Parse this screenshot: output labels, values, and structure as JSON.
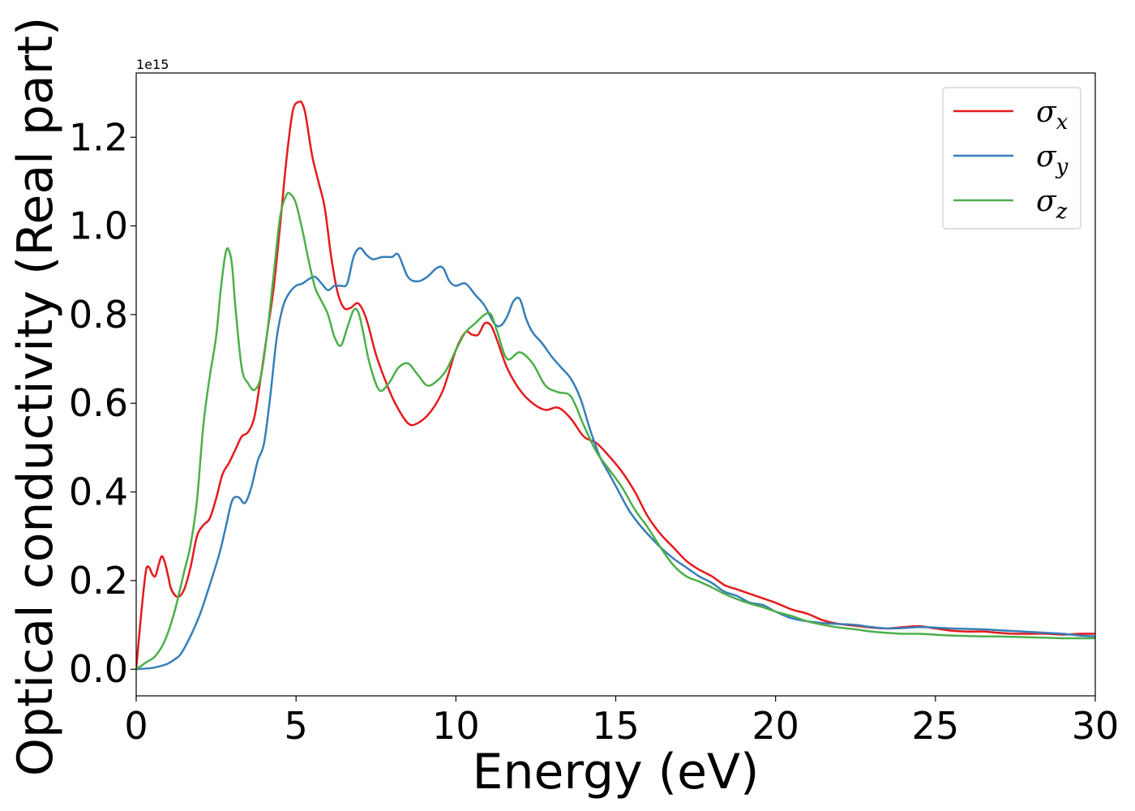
{
  "chart_data": {
    "type": "line",
    "title": "",
    "xlabel": "Energy (eV)",
    "ylabel": "Optical conductivity (Real part)",
    "y_offset_label": "1e15",
    "xlim": [
      0,
      30
    ],
    "ylim": [
      -0.06,
      1.345
    ],
    "x_ticks": [
      0,
      5,
      10,
      15,
      20,
      25,
      30
    ],
    "x_tick_labels": [
      "0",
      "5",
      "10",
      "15",
      "20",
      "25",
      "30"
    ],
    "y_ticks": [
      0.0,
      0.2,
      0.4,
      0.6,
      0.8,
      1.0,
      1.2
    ],
    "y_tick_labels": [
      "0.0",
      "0.2",
      "0.4",
      "0.6",
      "0.8",
      "1.0",
      "1.2"
    ],
    "grid": false,
    "legend_position": "top-right",
    "series": [
      {
        "name": "σx",
        "legend_symbol": "σ",
        "legend_subscript": "x",
        "color": "#e41a1c",
        "x": [
          0,
          0.15,
          0.3,
          0.4,
          0.5,
          0.6,
          0.7,
          0.8,
          0.9,
          1.0,
          1.1,
          1.3,
          1.5,
          1.7,
          1.9,
          2.1,
          2.3,
          2.5,
          2.7,
          2.9,
          3.1,
          3.3,
          3.5,
          3.7,
          3.9,
          4.1,
          4.3,
          4.5,
          4.7,
          4.9,
          5.1,
          5.2,
          5.3,
          5.5,
          5.7,
          5.9,
          6.1,
          6.3,
          6.5,
          6.7,
          6.95,
          7.2,
          7.5,
          7.8,
          8.1,
          8.5,
          8.8,
          9.2,
          9.6,
          10.0,
          10.3,
          10.5,
          10.7,
          10.9,
          11.1,
          11.3,
          11.6,
          12.0,
          12.4,
          12.8,
          13.2,
          13.6,
          14.0,
          14.4,
          14.8,
          15.2,
          15.6,
          16.0,
          16.4,
          16.8,
          17.2,
          17.6,
          18.0,
          18.4,
          18.8,
          19.2,
          19.6,
          20.0,
          20.5,
          21.0,
          21.5,
          22.0,
          22.5,
          23.0,
          23.5,
          24.0,
          24.5,
          25.0,
          25.5,
          26.0,
          26.5,
          27.0,
          27.5,
          28.0,
          28.5,
          29.0,
          29.5,
          30.0
        ],
        "values": [
          0.0,
          0.12,
          0.22,
          0.23,
          0.215,
          0.21,
          0.235,
          0.255,
          0.24,
          0.21,
          0.18,
          0.163,
          0.18,
          0.23,
          0.3,
          0.325,
          0.34,
          0.385,
          0.44,
          0.465,
          0.495,
          0.525,
          0.535,
          0.57,
          0.66,
          0.76,
          0.86,
          1.0,
          1.15,
          1.26,
          1.28,
          1.275,
          1.25,
          1.16,
          1.1,
          1.04,
          0.93,
          0.85,
          0.815,
          0.815,
          0.825,
          0.79,
          0.71,
          0.65,
          0.6,
          0.555,
          0.555,
          0.58,
          0.63,
          0.72,
          0.76,
          0.755,
          0.755,
          0.78,
          0.775,
          0.74,
          0.68,
          0.63,
          0.6,
          0.585,
          0.59,
          0.565,
          0.525,
          0.51,
          0.48,
          0.445,
          0.4,
          0.345,
          0.305,
          0.275,
          0.245,
          0.225,
          0.21,
          0.19,
          0.18,
          0.17,
          0.16,
          0.15,
          0.135,
          0.125,
          0.11,
          0.102,
          0.098,
          0.094,
          0.092,
          0.095,
          0.097,
          0.092,
          0.087,
          0.085,
          0.085,
          0.082,
          0.08,
          0.08,
          0.08,
          0.078,
          0.08,
          0.08
        ]
      },
      {
        "name": "σy",
        "legend_symbol": "σ",
        "legend_subscript": "y",
        "color": "#377eb8",
        "x": [
          0,
          0.5,
          0.8,
          1.0,
          1.2,
          1.4,
          1.7,
          2.0,
          2.3,
          2.6,
          2.8,
          3.0,
          3.2,
          3.4,
          3.6,
          3.8,
          4.0,
          4.2,
          4.4,
          4.6,
          4.8,
          5.0,
          5.2,
          5.4,
          5.6,
          5.8,
          6.0,
          6.2,
          6.4,
          6.6,
          6.8,
          7.0,
          7.2,
          7.4,
          7.7,
          8.0,
          8.2,
          8.5,
          8.8,
          9.1,
          9.4,
          9.6,
          9.8,
          10.0,
          10.3,
          10.6,
          10.9,
          11.2,
          11.4,
          11.6,
          11.8,
          12.0,
          12.2,
          12.4,
          12.7,
          13.0,
          13.3,
          13.6,
          13.9,
          14.2,
          14.5,
          14.8,
          15.1,
          15.4,
          15.7,
          16.0,
          16.4,
          16.8,
          17.2,
          17.6,
          18.0,
          18.4,
          18.8,
          19.2,
          19.6,
          20.0,
          20.5,
          21.0,
          21.5,
          22.0,
          22.5,
          23.0,
          23.5,
          24.0,
          24.5,
          25.0,
          25.5,
          26.0,
          26.5,
          27.0,
          27.5,
          28.0,
          28.5,
          29.0,
          29.5,
          30.0
        ],
        "values": [
          0.0,
          0.003,
          0.008,
          0.013,
          0.022,
          0.035,
          0.075,
          0.125,
          0.19,
          0.26,
          0.32,
          0.38,
          0.388,
          0.375,
          0.41,
          0.47,
          0.51,
          0.62,
          0.75,
          0.82,
          0.85,
          0.865,
          0.87,
          0.88,
          0.885,
          0.87,
          0.855,
          0.865,
          0.865,
          0.87,
          0.93,
          0.95,
          0.935,
          0.925,
          0.93,
          0.93,
          0.935,
          0.885,
          0.875,
          0.885,
          0.905,
          0.905,
          0.875,
          0.865,
          0.87,
          0.845,
          0.82,
          0.78,
          0.775,
          0.795,
          0.83,
          0.835,
          0.79,
          0.76,
          0.735,
          0.705,
          0.68,
          0.655,
          0.61,
          0.54,
          0.48,
          0.44,
          0.4,
          0.36,
          0.33,
          0.305,
          0.275,
          0.25,
          0.23,
          0.21,
          0.195,
          0.175,
          0.165,
          0.15,
          0.145,
          0.13,
          0.115,
          0.108,
          0.104,
          0.102,
          0.1,
          0.095,
          0.092,
          0.093,
          0.095,
          0.094,
          0.092,
          0.091,
          0.09,
          0.088,
          0.086,
          0.084,
          0.082,
          0.08,
          0.076,
          0.074
        ]
      },
      {
        "name": "σz",
        "legend_symbol": "σ",
        "legend_subscript": "z",
        "color": "#4daf4a",
        "x": [
          0,
          0.3,
          0.6,
          0.9,
          1.2,
          1.5,
          1.7,
          1.9,
          2.1,
          2.3,
          2.5,
          2.65,
          2.8,
          2.9,
          3.0,
          3.1,
          3.3,
          3.5,
          3.7,
          3.9,
          4.1,
          4.3,
          4.5,
          4.7,
          4.85,
          5.0,
          5.2,
          5.4,
          5.6,
          5.8,
          6.0,
          6.2,
          6.4,
          6.6,
          6.8,
          6.95,
          7.1,
          7.3,
          7.6,
          7.9,
          8.2,
          8.5,
          8.8,
          9.1,
          9.4,
          9.7,
          10.0,
          10.3,
          10.6,
          10.9,
          11.1,
          11.3,
          11.6,
          12.0,
          12.4,
          12.8,
          13.2,
          13.6,
          14.0,
          14.4,
          14.8,
          15.2,
          15.6,
          16.0,
          16.4,
          16.8,
          17.2,
          17.6,
          18.0,
          18.4,
          18.8,
          19.2,
          19.6,
          20.0,
          20.5,
          21.0,
          21.5,
          22.0,
          22.5,
          23.0,
          23.5,
          24.0,
          24.5,
          25.0,
          25.5,
          26.0,
          26.5,
          27.0,
          27.5,
          28.0,
          28.5,
          29.0,
          29.5,
          30.0
        ],
        "values": [
          0.0,
          0.015,
          0.03,
          0.065,
          0.13,
          0.22,
          0.28,
          0.38,
          0.55,
          0.66,
          0.75,
          0.86,
          0.94,
          0.945,
          0.91,
          0.82,
          0.68,
          0.645,
          0.63,
          0.66,
          0.76,
          0.89,
          1.02,
          1.07,
          1.07,
          1.05,
          0.99,
          0.92,
          0.86,
          0.83,
          0.8,
          0.75,
          0.73,
          0.77,
          0.81,
          0.805,
          0.76,
          0.69,
          0.63,
          0.645,
          0.68,
          0.69,
          0.665,
          0.64,
          0.65,
          0.675,
          0.72,
          0.76,
          0.78,
          0.8,
          0.8,
          0.76,
          0.7,
          0.715,
          0.69,
          0.64,
          0.625,
          0.615,
          0.55,
          0.49,
          0.45,
          0.41,
          0.36,
          0.32,
          0.275,
          0.235,
          0.21,
          0.198,
          0.185,
          0.17,
          0.158,
          0.148,
          0.14,
          0.13,
          0.12,
          0.108,
          0.1,
          0.094,
          0.09,
          0.085,
          0.082,
          0.08,
          0.08,
          0.078,
          0.076,
          0.075,
          0.074,
          0.074,
          0.073,
          0.072,
          0.071,
          0.07,
          0.07,
          0.07
        ]
      }
    ]
  }
}
